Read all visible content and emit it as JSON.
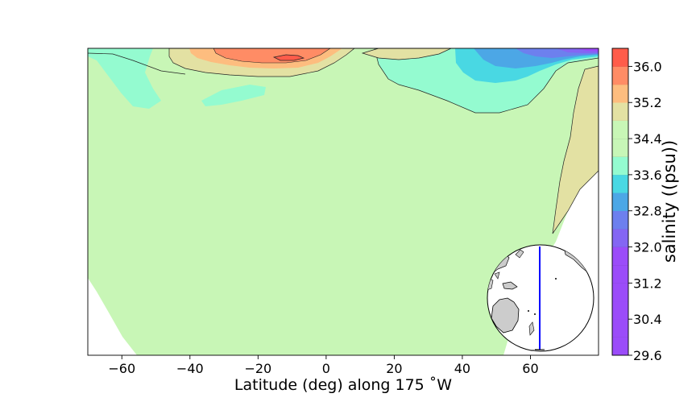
{
  "chart_data": {
    "type": "heatmap",
    "title": "",
    "xlabel": "Latitude (deg) along 175 $^\\circ$W",
    "xlabel_display": "Latitude (deg) along 175 ˚W",
    "ylabel": "",
    "xlim": [
      -70,
      80
    ],
    "xticks": [
      -60,
      -40,
      -20,
      0,
      20,
      40,
      60
    ],
    "x_grid": false,
    "legend": "none",
    "colorbar": {
      "label": "salinity ((psu))",
      "range": [
        29.6,
        36.4
      ],
      "ticks": [
        29.6,
        30.4,
        31.2,
        32.0,
        32.8,
        33.6,
        34.4,
        35.2,
        36.0
      ],
      "levels": [
        29.6,
        30.0,
        30.4,
        30.8,
        31.2,
        31.6,
        32.0,
        32.4,
        32.8,
        33.2,
        33.6,
        34.0,
        34.4,
        34.8,
        35.2,
        35.6,
        36.0,
        36.4
      ],
      "colors": [
        "#9b4cf9",
        "#9b4cf9",
        "#9b4cf9",
        "#9b4cf9",
        "#9b4cf9",
        "#9b4cf9",
        "#8466f3",
        "#6d80ee",
        "#4ca7e6",
        "#49d8e3",
        "#94fbd0",
        "#c7f6b7",
        "#c8f6b6",
        "#e3e1a3",
        "#fdbd7f",
        "#ff8c65",
        "#ff5c4a"
      ],
      "colorbar_position": "right"
    },
    "fields": {
      "background_salinity": 34.6,
      "surface_max_salinity": 36.2,
      "surface_max_latitude": -12,
      "surface_min_salinity": 32.0,
      "surface_min_latitude": 78
    },
    "inset": {
      "description": "globe orthographic map",
      "section_line_color": "#0000ff",
      "section_longitude_label": "175 W"
    }
  }
}
